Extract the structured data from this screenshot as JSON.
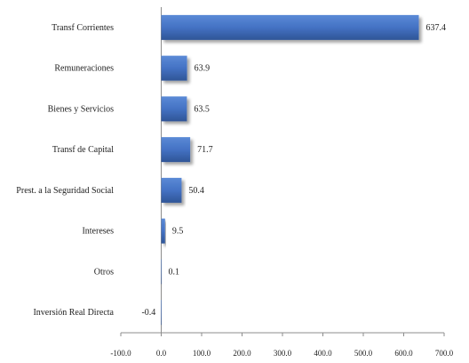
{
  "chart_data": {
    "type": "bar",
    "orientation": "horizontal",
    "categories": [
      "Transf Corrientes",
      "Remuneraciones",
      "Bienes y Servicios",
      "Transf de Capital",
      "Prest. a la Seguridad Social",
      "Intereses",
      "Otros",
      "Inversión Real Directa"
    ],
    "values": [
      637.4,
      63.9,
      63.5,
      71.7,
      50.4,
      9.5,
      0.1,
      -0.4
    ],
    "value_labels": [
      "637.4",
      "63.9",
      "63.5",
      "71.7",
      "50.4",
      "9.5",
      "0.1",
      "-0.4"
    ],
    "xlim": [
      -100,
      700
    ],
    "x_ticks": [
      -100,
      0,
      100,
      200,
      300,
      400,
      500,
      600,
      700
    ],
    "x_tick_labels": [
      "-100.0",
      "0.0",
      "100.0",
      "200.0",
      "300.0",
      "400.0",
      "500.0",
      "600.0",
      "700.0"
    ],
    "bar_color": "#4472C4",
    "title": "",
    "xlabel": "",
    "ylabel": "",
    "grid": false,
    "legend": "none"
  }
}
